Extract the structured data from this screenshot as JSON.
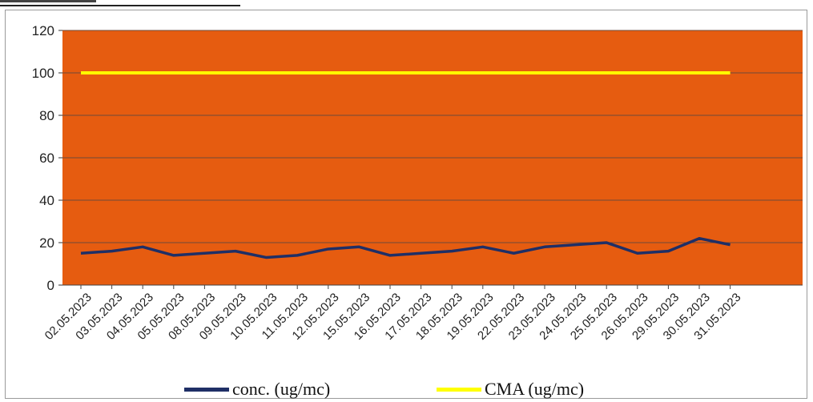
{
  "chart_data": {
    "type": "line",
    "categories": [
      "02.05.2023",
      "03.05.2023",
      "04.05.2023",
      "05.05.2023",
      "08.05.2023",
      "09.05.2023",
      "10.05.2023",
      "11.05.2023",
      "12.05.2023",
      "15.05.2023",
      "16.05.2023",
      "17.05.2023",
      "18.05.2023",
      "19.05.2023",
      "22.05.2023",
      "23.05.2023",
      "24.05.2023",
      "25.05.2023",
      "26.05.2023",
      "29.05.2023",
      "30.05.2023",
      "31.05.2023"
    ],
    "series": [
      {
        "name": "conc. (ug/mc)",
        "color": "#1f2f66",
        "values": [
          15,
          16,
          18,
          14,
          15,
          16,
          13,
          14,
          17,
          18,
          14,
          15,
          16,
          18,
          15,
          18,
          19,
          20,
          15,
          16,
          22,
          19
        ]
      },
      {
        "name": "CMA (ug/mc)",
        "color": "#ffff00",
        "values": [
          100,
          100,
          100,
          100,
          100,
          100,
          100,
          100,
          100,
          100,
          100,
          100,
          100,
          100,
          100,
          100,
          100,
          100,
          100,
          100,
          100,
          100
        ]
      }
    ],
    "yticks": [
      0,
      20,
      40,
      60,
      80,
      100,
      120
    ],
    "ylim": [
      0,
      120
    ],
    "grid": true,
    "legend_position": "bottom",
    "plot_background": "#e65c10"
  }
}
